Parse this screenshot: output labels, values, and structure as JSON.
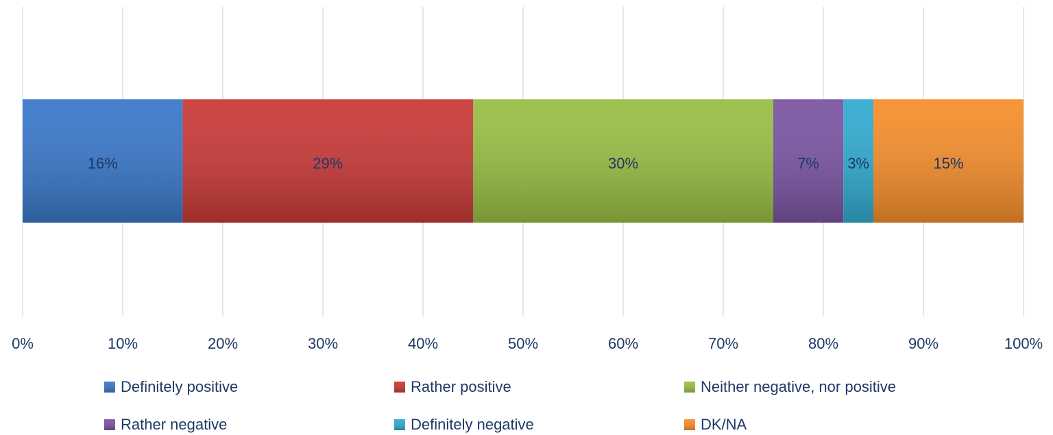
{
  "chart_data": {
    "type": "stacked_barh",
    "categories": [
      null
    ],
    "series": [
      {
        "name": "Definitely positive",
        "color": "#3a78c9",
        "values": [
          16
        ],
        "value_labels": [
          "16%"
        ]
      },
      {
        "name": "Rather positive",
        "color": "#c93a38",
        "values": [
          29
        ],
        "value_labels": [
          "29%"
        ]
      },
      {
        "name": "Neither negative, nor positive",
        "color": "#98bf45",
        "values": [
          30
        ],
        "value_labels": [
          "30%"
        ]
      },
      {
        "name": "Rather negative",
        "color": "#7b55a3",
        "values": [
          7
        ],
        "value_labels": [
          "7%"
        ]
      },
      {
        "name": "Definitely negative",
        "color": "#32abd0",
        "values": [
          3
        ],
        "value_labels": [
          "3%"
        ]
      },
      {
        "name": "DK/NA",
        "color": "#f68f2c",
        "values": [
          15
        ],
        "value_labels": [
          "15%"
        ]
      }
    ],
    "xlim": [
      0,
      100
    ],
    "xticks": [
      {
        "value": 0,
        "label": "0%"
      },
      {
        "value": 10,
        "label": "10%"
      },
      {
        "value": 20,
        "label": "20%"
      },
      {
        "value": 30,
        "label": "30%"
      },
      {
        "value": 40,
        "label": "40%"
      },
      {
        "value": 50,
        "label": "50%"
      },
      {
        "value": 60,
        "label": "60%"
      },
      {
        "value": 70,
        "label": "70%"
      },
      {
        "value": 80,
        "label": "80%"
      },
      {
        "value": 90,
        "label": "90%"
      },
      {
        "value": 100,
        "label": "100%"
      }
    ],
    "grid": true,
    "legend": "bottom"
  }
}
